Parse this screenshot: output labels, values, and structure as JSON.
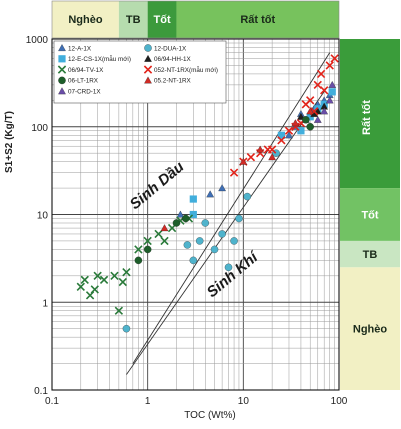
{
  "chart_data": {
    "type": "scatter",
    "xlabel": "TOC (Wt%)",
    "ylabel": "S1+S2  (Kg/T)",
    "x_scale": "log",
    "y_scale": "log",
    "xlim": [
      0.1,
      100
    ],
    "ylim": [
      0.1,
      1000
    ],
    "grid": true,
    "legend_position": "top-left",
    "x_ticks": [
      "0.1",
      "1",
      "10",
      "100"
    ],
    "y_ticks": [
      "0.1",
      "1",
      "10",
      "100",
      "1000"
    ],
    "top_bands": [
      {
        "label": "Nghèo",
        "x_from": 0.1,
        "x_to": 0.5,
        "color": "#f2f0c4"
      },
      {
        "label": "TB",
        "x_from": 0.5,
        "x_to": 1,
        "color": "#b6dcae"
      },
      {
        "label": "Tốt",
        "x_from": 1,
        "x_to": 2,
        "color": "#3c9a3c"
      },
      {
        "label": "Rất tốt",
        "x_from": 2,
        "x_to": 100,
        "color": "#77c25d"
      }
    ],
    "right_bands": [
      {
        "label": "Rất tốt",
        "y_from": 20,
        "y_to": 1000,
        "color": "#3a9c3a"
      },
      {
        "label": "Tốt",
        "y_from": 5,
        "y_to": 20,
        "color": "#72c264"
      },
      {
        "label": "TB",
        "y_from": 2.5,
        "y_to": 5,
        "color": "#c9e6c2"
      },
      {
        "label": "Nghèo",
        "y_from": 0.1,
        "y_to": 2.5,
        "color": "#f2f0c4"
      }
    ],
    "annotations": [
      "Sinh Dầu",
      "Sinh Khí"
    ],
    "series": [
      {
        "name": "12-A-1X",
        "marker": "triangle",
        "color": "#3f6fb5",
        "points": [
          [
            2.2,
            10
          ],
          [
            4.5,
            17
          ],
          [
            6,
            20
          ],
          [
            30,
            80
          ],
          [
            35,
            100
          ],
          [
            40,
            140
          ],
          [
            45,
            120
          ],
          [
            55,
            160
          ],
          [
            60,
            180
          ],
          [
            70,
            200
          ],
          [
            80,
            230
          ]
        ]
      },
      {
        "name": "12-DUA-1X",
        "marker": "circle",
        "color": "#4fb3cc",
        "points": [
          [
            0.6,
            0.5
          ],
          [
            2.6,
            4.5
          ],
          [
            3,
            3
          ],
          [
            3.5,
            5
          ],
          [
            4,
            8
          ],
          [
            5,
            4
          ],
          [
            6,
            6
          ],
          [
            7,
            2.5
          ],
          [
            8,
            5
          ],
          [
            9,
            9
          ],
          [
            11,
            16
          ],
          [
            22,
            50
          ]
        ]
      },
      {
        "name": "12-E-CS-1X(mẫu mới)",
        "marker": "square",
        "color": "#41aedc",
        "points": [
          [
            3,
            15
          ],
          [
            3,
            10
          ],
          [
            25,
            80
          ],
          [
            40,
            90
          ],
          [
            50,
            130
          ],
          [
            60,
            160
          ],
          [
            70,
            180
          ],
          [
            85,
            250
          ]
        ]
      },
      {
        "name": "06/94-HH-1X",
        "marker": "triangle",
        "color": "#1e1e1e",
        "points": [
          [
            40,
            130
          ],
          [
            55,
            140
          ],
          [
            60,
            150
          ],
          [
            70,
            170
          ]
        ]
      },
      {
        "name": "06/94-TV-1X",
        "marker": "x",
        "color": "#2a7a3a",
        "points": [
          [
            0.2,
            1.5
          ],
          [
            0.22,
            1.8
          ],
          [
            0.25,
            1.2
          ],
          [
            0.28,
            1.4
          ],
          [
            0.3,
            2
          ],
          [
            0.35,
            1.8
          ],
          [
            0.45,
            2
          ],
          [
            0.5,
            0.8
          ],
          [
            0.55,
            1.7
          ],
          [
            0.6,
            2.2
          ],
          [
            0.8,
            4
          ],
          [
            1,
            5
          ],
          [
            1.3,
            6
          ],
          [
            1.5,
            5
          ],
          [
            1.8,
            7
          ],
          [
            2.2,
            8.5
          ],
          [
            2.7,
            9
          ]
        ]
      },
      {
        "name": "052-NT-1RX(mẫu mới)",
        "marker": "x",
        "color": "#e2231a",
        "points": [
          [
            8,
            30
          ],
          [
            10,
            40
          ],
          [
            12,
            45
          ],
          [
            15,
            50
          ],
          [
            18,
            55
          ],
          [
            20,
            55
          ],
          [
            25,
            70
          ],
          [
            30,
            90
          ],
          [
            35,
            100
          ],
          [
            40,
            110
          ],
          [
            45,
            180
          ],
          [
            50,
            200
          ],
          [
            55,
            150
          ],
          [
            60,
            300
          ],
          [
            65,
            400
          ],
          [
            70,
            260
          ],
          [
            80,
            500
          ],
          [
            90,
            600
          ]
        ]
      },
      {
        "name": "06-LT-1RX",
        "marker": "circle",
        "color": "#1d5e2a",
        "points": [
          [
            0.8,
            3
          ],
          [
            1,
            4
          ],
          [
            2,
            8
          ],
          [
            2.5,
            9
          ],
          [
            45,
            120
          ],
          [
            50,
            100
          ]
        ]
      },
      {
        "name": "05.2-NT-1RX",
        "marker": "triangle",
        "color": "#d12a24",
        "points": [
          [
            1.5,
            7
          ],
          [
            10,
            40
          ],
          [
            15,
            55
          ],
          [
            20,
            45
          ],
          [
            35,
            110
          ],
          [
            50,
            150
          ]
        ]
      },
      {
        "name": "07-CRD-1X",
        "marker": "triangle",
        "color": "#6a4da8",
        "points": [
          [
            60,
            120
          ],
          [
            70,
            150
          ],
          [
            80,
            200
          ],
          [
            85,
            300
          ]
        ]
      }
    ]
  }
}
